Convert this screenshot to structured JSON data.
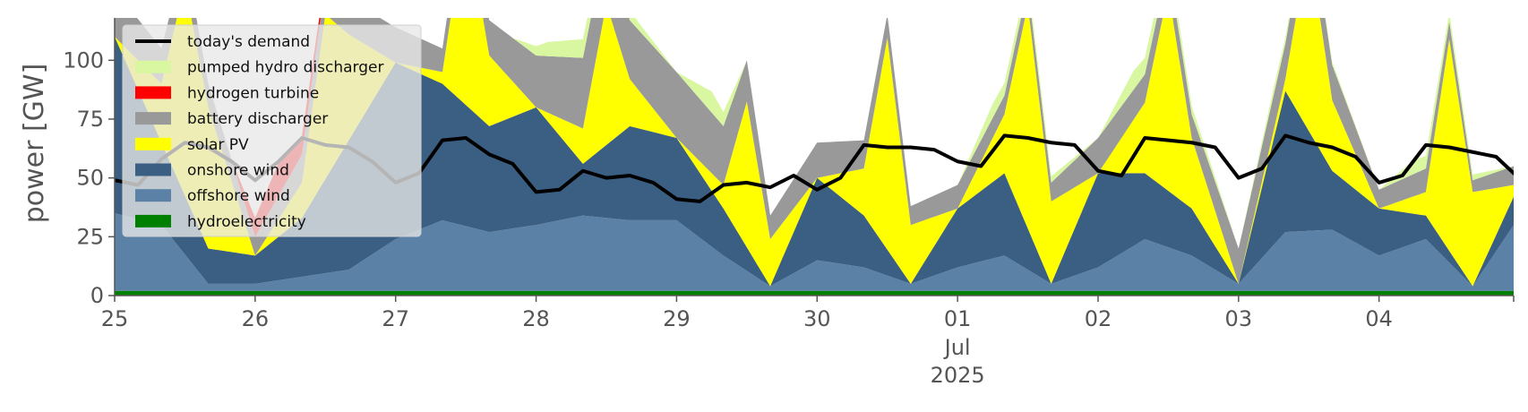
{
  "chart_data": {
    "type": "area",
    "ylabel": "power [GW]",
    "ylim": [
      0,
      118
    ],
    "yticks": [
      0,
      25,
      50,
      75,
      100
    ],
    "xlim": [
      "2025-06-25T00:00",
      "2025-07-04T23:00"
    ],
    "x_tick_labels": [
      {
        "t": "2025-06-25",
        "label": "25"
      },
      {
        "t": "2025-06-26",
        "label": "26"
      },
      {
        "t": "2025-06-27",
        "label": "27"
      },
      {
        "t": "2025-06-28",
        "label": "28"
      },
      {
        "t": "2025-06-29",
        "label": "29"
      },
      {
        "t": "2025-06-30",
        "label": "30"
      },
      {
        "t": "2025-07-01",
        "label": "01"
      },
      {
        "t": "2025-07-02",
        "label": "02"
      },
      {
        "t": "2025-07-03",
        "label": "03"
      },
      {
        "t": "2025-07-04",
        "label": "04"
      }
    ],
    "x_sublabel_month": "Jul",
    "x_sublabel_year": "2025",
    "legend_position": "top-left",
    "grid": false,
    "stack_order": [
      "hydroelectricity",
      "offshore wind",
      "onshore wind",
      "solar PV",
      "battery discharger",
      "hydrogen turbine",
      "pumped hydro discharger"
    ],
    "legend_order": [
      "today's demand",
      "pumped hydro discharger",
      "hydrogen turbine",
      "battery discharger",
      "solar PV",
      "onshore wind",
      "offshore wind",
      "hydroelectricity"
    ],
    "series": [
      {
        "name": "hydroelectricity",
        "color": "#008000",
        "kind": "area",
        "x": [
          "2025-06-25T00:00",
          "2025-06-26T00:00",
          "2025-06-27T00:00",
          "2025-06-28T00:00",
          "2025-06-29T00:00",
          "2025-06-30T00:00",
          "2025-07-01T00:00",
          "2025-07-02T00:00",
          "2025-07-03T00:00",
          "2025-07-04T00:00",
          "2025-07-04T23:00"
        ],
        "values": [
          2,
          2,
          2,
          2,
          2,
          2,
          2,
          2,
          2,
          2,
          2
        ]
      },
      {
        "name": "offshore wind",
        "color": "#5b81a7",
        "kind": "area",
        "x": [
          "2025-06-25T00:00",
          "2025-06-25T08:00",
          "2025-06-25T16:00",
          "2025-06-26T00:00",
          "2025-06-26T08:00",
          "2025-06-26T16:00",
          "2025-06-27T00:00",
          "2025-06-27T08:00",
          "2025-06-27T16:00",
          "2025-06-28T00:00",
          "2025-06-28T08:00",
          "2025-06-28T16:00",
          "2025-06-29T00:00",
          "2025-06-29T08:00",
          "2025-06-29T16:00",
          "2025-06-30T00:00",
          "2025-06-30T08:00",
          "2025-06-30T16:00",
          "2025-07-01T00:00",
          "2025-07-01T08:00",
          "2025-07-01T16:00",
          "2025-07-02T00:00",
          "2025-07-02T08:00",
          "2025-07-02T16:00",
          "2025-07-03T00:00",
          "2025-07-03T08:00",
          "2025-07-03T16:00",
          "2025-07-04T00:00",
          "2025-07-04T08:00",
          "2025-07-04T16:00",
          "2025-07-04T23:00"
        ],
        "values": [
          33,
          28,
          3,
          3,
          6,
          9,
          22,
          30,
          25,
          28,
          32,
          30,
          30,
          15,
          2,
          13,
          10,
          3,
          10,
          15,
          3,
          10,
          22,
          15,
          3,
          25,
          26,
          15,
          22,
          2,
          28
        ]
      },
      {
        "name": "onshore wind",
        "color": "#3b5f82",
        "kind": "area",
        "x": [
          "2025-06-25T00:00",
          "2025-06-25T08:00",
          "2025-06-25T16:00",
          "2025-06-26T00:00",
          "2025-06-26T08:00",
          "2025-06-26T16:00",
          "2025-06-27T00:00",
          "2025-06-27T08:00",
          "2025-06-27T16:00",
          "2025-06-28T00:00",
          "2025-06-28T08:00",
          "2025-06-28T16:00",
          "2025-06-29T00:00",
          "2025-06-29T08:00",
          "2025-06-29T16:00",
          "2025-06-30T00:00",
          "2025-06-30T08:00",
          "2025-06-30T16:00",
          "2025-07-01T00:00",
          "2025-07-01T08:00",
          "2025-07-01T16:00",
          "2025-07-02T00:00",
          "2025-07-02T08:00",
          "2025-07-02T16:00",
          "2025-07-03T00:00",
          "2025-07-03T08:00",
          "2025-07-03T16:00",
          "2025-07-04T00:00",
          "2025-07-04T08:00",
          "2025-07-04T16:00",
          "2025-07-04T23:00"
        ],
        "values": [
          75,
          35,
          15,
          12,
          25,
          55,
          75,
          58,
          45,
          50,
          22,
          40,
          35,
          20,
          0,
          35,
          22,
          0,
          25,
          35,
          0,
          40,
          28,
          20,
          0,
          60,
          25,
          20,
          10,
          0,
          12
        ]
      },
      {
        "name": "solar PV",
        "color": "#ffff00",
        "kind": "area",
        "x": [
          "2025-06-25T00:00",
          "2025-06-25T08:00",
          "2025-06-25T12:00",
          "2025-06-25T16:00",
          "2025-06-26T00:00",
          "2025-06-26T08:00",
          "2025-06-26T12:00",
          "2025-06-26T16:00",
          "2025-06-27T00:00",
          "2025-06-27T08:00",
          "2025-06-27T12:00",
          "2025-06-27T16:00",
          "2025-06-28T00:00",
          "2025-06-28T08:00",
          "2025-06-28T12:00",
          "2025-06-28T16:00",
          "2025-06-29T00:00",
          "2025-06-29T08:00",
          "2025-06-29T12:00",
          "2025-06-29T16:00",
          "2025-06-30T00:00",
          "2025-06-30T08:00",
          "2025-06-30T12:00",
          "2025-06-30T16:00",
          "2025-07-01T00:00",
          "2025-07-01T08:00",
          "2025-07-01T12:00",
          "2025-07-01T16:00",
          "2025-07-02T00:00",
          "2025-07-02T08:00",
          "2025-07-02T12:00",
          "2025-07-02T16:00",
          "2025-07-03T00:00",
          "2025-07-03T08:00",
          "2025-07-03T12:00",
          "2025-07-03T16:00",
          "2025-07-04T00:00",
          "2025-07-04T08:00",
          "2025-07-04T12:00",
          "2025-07-04T16:00",
          "2025-07-04T23:00"
        ],
        "values": [
          0,
          25,
          90,
          60,
          0,
          15,
          70,
          45,
          0,
          5,
          80,
          30,
          0,
          15,
          60,
          20,
          0,
          10,
          62,
          20,
          0,
          20,
          90,
          25,
          0,
          25,
          95,
          35,
          0,
          30,
          85,
          30,
          0,
          5,
          80,
          30,
          0,
          10,
          90,
          40,
          5
        ]
      },
      {
        "name": "battery discharger",
        "color": "#999999",
        "kind": "area",
        "x": [
          "2025-06-25T00:00",
          "2025-06-25T08:00",
          "2025-06-25T16:00",
          "2025-06-26T00:00",
          "2025-06-26T08:00",
          "2025-06-26T16:00",
          "2025-06-27T00:00",
          "2025-06-27T08:00",
          "2025-06-27T16:00",
          "2025-06-28T00:00",
          "2025-06-28T08:00",
          "2025-06-28T16:00",
          "2025-06-29T00:00",
          "2025-06-29T08:00",
          "2025-06-29T16:00",
          "2025-06-30T00:00",
          "2025-06-30T08:00",
          "2025-06-30T16:00",
          "2025-07-01T00:00",
          "2025-07-01T08:00",
          "2025-07-01T16:00",
          "2025-07-02T00:00",
          "2025-07-02T08:00",
          "2025-07-02T16:00",
          "2025-07-03T00:00",
          "2025-07-03T08:00",
          "2025-07-03T16:00",
          "2025-07-04T00:00",
          "2025-07-04T08:00",
          "2025-07-04T16:00",
          "2025-07-04T23:00"
        ],
        "values": [
          20,
          15,
          10,
          8,
          12,
          15,
          15,
          10,
          15,
          22,
          30,
          25,
          28,
          25,
          10,
          15,
          12,
          8,
          10,
          8,
          8,
          15,
          12,
          10,
          15,
          15,
          15,
          8,
          10,
          5,
          8
        ]
      },
      {
        "name": "hydrogen turbine",
        "color": "#ff0000",
        "kind": "area",
        "x": [
          "2025-06-25T00:00",
          "2025-06-25T20:00",
          "2025-06-26T00:00",
          "2025-06-26T04:00",
          "2025-06-26T08:00",
          "2025-06-26T14:00",
          "2025-07-04T23:00"
        ],
        "values": [
          0,
          0,
          8,
          14,
          8,
          0,
          0
        ]
      },
      {
        "name": "pumped hydro discharger",
        "color": "#d9f7a1",
        "kind": "area",
        "x": [
          "2025-06-25T00:00",
          "2025-06-27T20:00",
          "2025-06-28T02:00",
          "2025-06-28T08:00",
          "2025-06-29T00:00",
          "2025-06-29T06:00",
          "2025-06-29T12:00",
          "2025-07-01T00:00",
          "2025-07-01T06:00",
          "2025-07-02T00:00",
          "2025-07-02T06:00",
          "2025-07-03T00:00",
          "2025-07-03T06:00",
          "2025-07-04T00:00",
          "2025-07-04T06:00",
          "2025-07-04T23:00"
        ],
        "values": [
          0,
          0,
          6,
          8,
          0,
          9,
          0,
          0,
          6,
          0,
          8,
          0,
          3,
          0,
          6,
          0
        ]
      },
      {
        "name": "today's demand",
        "color": "#000000",
        "kind": "line",
        "x": [
          "2025-06-25T00:00",
          "2025-06-25T04:00",
          "2025-06-25T08:00",
          "2025-06-25T12:00",
          "2025-06-25T16:00",
          "2025-06-25T20:00",
          "2025-06-26T00:00",
          "2025-06-26T04:00",
          "2025-06-26T08:00",
          "2025-06-26T12:00",
          "2025-06-26T16:00",
          "2025-06-26T20:00",
          "2025-06-27T00:00",
          "2025-06-27T04:00",
          "2025-06-27T08:00",
          "2025-06-27T12:00",
          "2025-06-27T16:00",
          "2025-06-27T20:00",
          "2025-06-28T00:00",
          "2025-06-28T04:00",
          "2025-06-28T08:00",
          "2025-06-28T12:00",
          "2025-06-28T16:00",
          "2025-06-28T20:00",
          "2025-06-29T00:00",
          "2025-06-29T04:00",
          "2025-06-29T08:00",
          "2025-06-29T12:00",
          "2025-06-29T16:00",
          "2025-06-29T20:00",
          "2025-06-30T00:00",
          "2025-06-30T04:00",
          "2025-06-30T08:00",
          "2025-06-30T12:00",
          "2025-06-30T16:00",
          "2025-06-30T20:00",
          "2025-07-01T00:00",
          "2025-07-01T04:00",
          "2025-07-01T08:00",
          "2025-07-01T12:00",
          "2025-07-01T16:00",
          "2025-07-01T20:00",
          "2025-07-02T00:00",
          "2025-07-02T04:00",
          "2025-07-02T08:00",
          "2025-07-02T12:00",
          "2025-07-02T16:00",
          "2025-07-02T20:00",
          "2025-07-03T00:00",
          "2025-07-03T04:00",
          "2025-07-03T08:00",
          "2025-07-03T12:00",
          "2025-07-03T16:00",
          "2025-07-03T20:00",
          "2025-07-04T00:00",
          "2025-07-04T04:00",
          "2025-07-04T08:00",
          "2025-07-04T12:00",
          "2025-07-04T16:00",
          "2025-07-04T20:00",
          "2025-07-04T23:00"
        ],
        "values": [
          49,
          47,
          58,
          65,
          63,
          57,
          49,
          57,
          67,
          64,
          63,
          57,
          48,
          52,
          66,
          67,
          60,
          56,
          44,
          45,
          53,
          50,
          51,
          48,
          41,
          40,
          47,
          48,
          46,
          51,
          45,
          50,
          64,
          63,
          63,
          62,
          57,
          55,
          68,
          67,
          65,
          64,
          53,
          51,
          67,
          66,
          65,
          63,
          50,
          54,
          68,
          65,
          63,
          59,
          48,
          51,
          64,
          63,
          61,
          59,
          52
        ]
      }
    ]
  }
}
